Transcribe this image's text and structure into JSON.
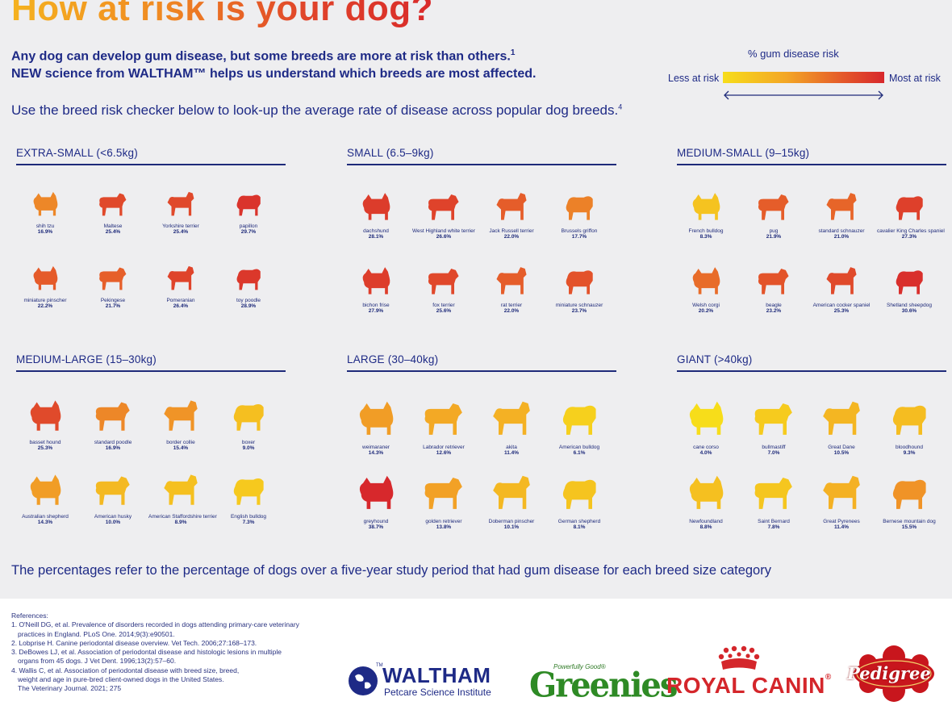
{
  "title": "How at risk is your dog?",
  "intro_line1": "Any dog can develop gum disease, but some breeds are more at risk than others.",
  "intro_line1_sup": "1",
  "intro_line2": "NEW science from WALTHAM™ helps us understand which breeds are most affected.",
  "lookup_text": "Use the breed risk checker below to look-up the average rate of disease across  popular dog breeds.",
  "lookup_sup": "4",
  "legend": {
    "title": "% gum disease risk",
    "less": "Less at risk",
    "most": "Most at risk",
    "colors": [
      "#f7dd1a",
      "#f3a526",
      "#e4572a",
      "#d7282c"
    ]
  },
  "categories": [
    {
      "name": "EXTRA-SMALL (<6.5kg)",
      "dogs": [
        {
          "name": "shih tzu",
          "pct": "16.9%"
        },
        {
          "name": "Maltese",
          "pct": "25.4%"
        },
        {
          "name": "Yorkshire terrier",
          "pct": "25.4%"
        },
        {
          "name": "papillon",
          "pct": "29.7%"
        },
        {
          "name": "miniature pinscher",
          "pct": "22.2%"
        },
        {
          "name": "Pekingese",
          "pct": "21.7%"
        },
        {
          "name": "Pomeranian",
          "pct": "26.4%"
        },
        {
          "name": "toy poodle",
          "pct": "28.9%"
        }
      ]
    },
    {
      "name": "SMALL (6.5–9kg)",
      "dogs": [
        {
          "name": "dachshund",
          "pct": "28.1%"
        },
        {
          "name": "West Highland white terrier",
          "pct": "26.6%"
        },
        {
          "name": "Jack Russell terrier",
          "pct": "22.0%"
        },
        {
          "name": "Brussels griffon",
          "pct": "17.7%"
        },
        {
          "name": "bichon frise",
          "pct": "27.9%"
        },
        {
          "name": "fox terrier",
          "pct": "25.6%"
        },
        {
          "name": "rat terrier",
          "pct": "22.0%"
        },
        {
          "name": "miniature schnauzer",
          "pct": "23.7%"
        }
      ]
    },
    {
      "name": "MEDIUM-SMALL (9–15kg)",
      "dogs": [
        {
          "name": "French bulldog",
          "pct": "8.3%"
        },
        {
          "name": "pug",
          "pct": "21.9%"
        },
        {
          "name": "standard schnauzer",
          "pct": "21.0%"
        },
        {
          "name": "cavalier King Charles spaniel",
          "pct": "27.3%"
        },
        {
          "name": "Welsh corgi",
          "pct": "20.2%"
        },
        {
          "name": "beagle",
          "pct": "23.2%"
        },
        {
          "name": "American cocker spaniel",
          "pct": "25.3%"
        },
        {
          "name": "Shetland sheepdog",
          "pct": "30.6%"
        }
      ]
    },
    {
      "name": "MEDIUM-LARGE (15–30kg)",
      "dogs": [
        {
          "name": "basset hound",
          "pct": "25.3%"
        },
        {
          "name": "standard poodle",
          "pct": "16.9%"
        },
        {
          "name": "border collie",
          "pct": "15.4%"
        },
        {
          "name": "boxer",
          "pct": "9.0%"
        },
        {
          "name": "Australian shepherd",
          "pct": "14.3%"
        },
        {
          "name": "American husky",
          "pct": "10.0%"
        },
        {
          "name": "American Staffordshire terrier",
          "pct": "8.9%"
        },
        {
          "name": "English bulldog",
          "pct": "7.3%"
        }
      ]
    },
    {
      "name": "LARGE (30–40kg)",
      "dogs": [
        {
          "name": "weimaraner",
          "pct": "14.3%"
        },
        {
          "name": "Labrador retriever",
          "pct": "12.6%"
        },
        {
          "name": "akita",
          "pct": "11.4%"
        },
        {
          "name": "American bulldog",
          "pct": "6.1%"
        },
        {
          "name": "greyhound",
          "pct": "38.7%"
        },
        {
          "name": "golden retriever",
          "pct": "13.8%"
        },
        {
          "name": "Doberman pinscher",
          "pct": "10.1%"
        },
        {
          "name": "German shepherd",
          "pct": "8.1%"
        }
      ]
    },
    {
      "name": "GIANT (>40kg)",
      "dogs": [
        {
          "name": "cane corso",
          "pct": "4.0%"
        },
        {
          "name": "bullmastiff",
          "pct": "7.0%"
        },
        {
          "name": "Great Dane",
          "pct": "10.5%"
        },
        {
          "name": "bloodhound",
          "pct": "9.3%"
        },
        {
          "name": "Newfoundland",
          "pct": "8.8%"
        },
        {
          "name": "Saint Bernard",
          "pct": "7.8%"
        },
        {
          "name": "Great Pyrenees",
          "pct": "11.4%"
        },
        {
          "name": "Bernese mountain dog",
          "pct": "15.5%"
        }
      ]
    }
  ],
  "footnote": "The percentages refer to the percentage of dogs over a five-year study period that had gum disease for each breed size category",
  "references": [
    "References:",
    "1. O'Neill DG, et al. Prevalence of disorders recorded in dogs attending primary-care veterinary",
    "practices in England. PLoS One. 2014;9(3):e90501.",
    "2. Lobprise H. Canine periodontal disease overview. Vet Tech. 2006;27:168–173.",
    "3. DeBowes LJ, et al. Association of periodontal disease and histologic lesions in multiple",
    "organs from 45 dogs. J Vet Dent. 1996;13(2):57–60.",
    "4. Wallis C, et al. Association of periodontal disease with breed size, breed,",
    "weight and age in pure-bred client-owned dogs in the United States.",
    "The Veterinary Journal. 2021; 275"
  ],
  "logos": {
    "waltham": "WALTHAM",
    "waltham_tm": "TM",
    "waltham_sub": "Petcare Science Institute",
    "greenies_sub": "Powerfully Good®",
    "greenies": "Greenies",
    "royal_canin": "ROYAL CANIN",
    "royal_canin_mark": "®",
    "pedigree": "Pedigree"
  }
}
